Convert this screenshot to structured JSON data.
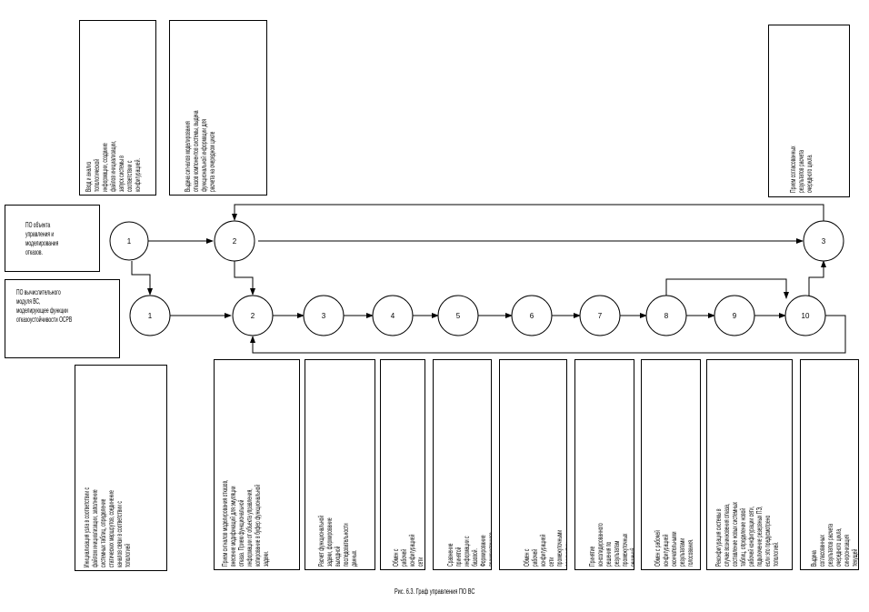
{
  "top_nodes": [
    {
      "id": "t1",
      "label": "1"
    },
    {
      "id": "t2",
      "label": "2"
    },
    {
      "id": "t3",
      "label": "3"
    }
  ],
  "bottom_nodes": [
    {
      "label": "1"
    },
    {
      "label": "2"
    },
    {
      "label": "3"
    },
    {
      "label": "4"
    },
    {
      "label": "5"
    },
    {
      "label": "6"
    },
    {
      "label": "7"
    },
    {
      "label": "8"
    },
    {
      "label": "9"
    },
    {
      "label": "10"
    }
  ],
  "side_labels": {
    "object_po": "ПО объекта управления и моделирования отказов.",
    "compute_po": "ПО вычислительного модуля ВС, моделирующее функции отказоустойчивости ОСРВ"
  },
  "top_notes": {
    "n1": "Ввод и анализ топологической информации, создание файлов инициализации, запуск системы в соответствии с конфигурацией.",
    "n2": "Выдача сигналов моделирования отказов компонентов системы, выдача функциональной информации для расчета на очередном цикле",
    "n3": "Прием согласованных результатов расчета очередного цикла."
  },
  "bottom_notes": {
    "left": "Инициализация узла в соответствии с файлом инициализации, заполнение системных таблиц, определение статических маршрутов, соединение каналов связи в соответствии с топологией",
    "b2": "Прием сигналов моделирования отказов, внесение модификаций для эмуляции отказа. Прием функциональной информации от объекта управления, копирование в буфер функциональной задачи.",
    "b3": "Расчет функциональной задачи, формирование выходной последовательности данных.",
    "b4": "Обмен с рабочей конфигурацией сети сформированными данными",
    "b5": "Сравнение принятой информации с базовой. Формирование промежуточного решения о состоянии системы",
    "b6": "Обмен с рабочей конфигурацией сети промежуточными решениями.",
    "b7": "Принятие консолидированного решения по результатам промежуточных решений",
    "b8": "Обмен с рабочей конфигурацией окончательными результатами голосования.",
    "b9": "Реконфигурация системы в случае возникновения отказа, составление новых системных таблиц, определение новой рабочей конфигурации сети, подключение резервных ПЭ, если это предусмотрено топологией.",
    "b10": "Выдача согласованных результатов расчета очередного цикла, синхронизация текущей информации элементов системы."
  },
  "caption": "Рис. 6.3. Граф управления ПО ВС"
}
